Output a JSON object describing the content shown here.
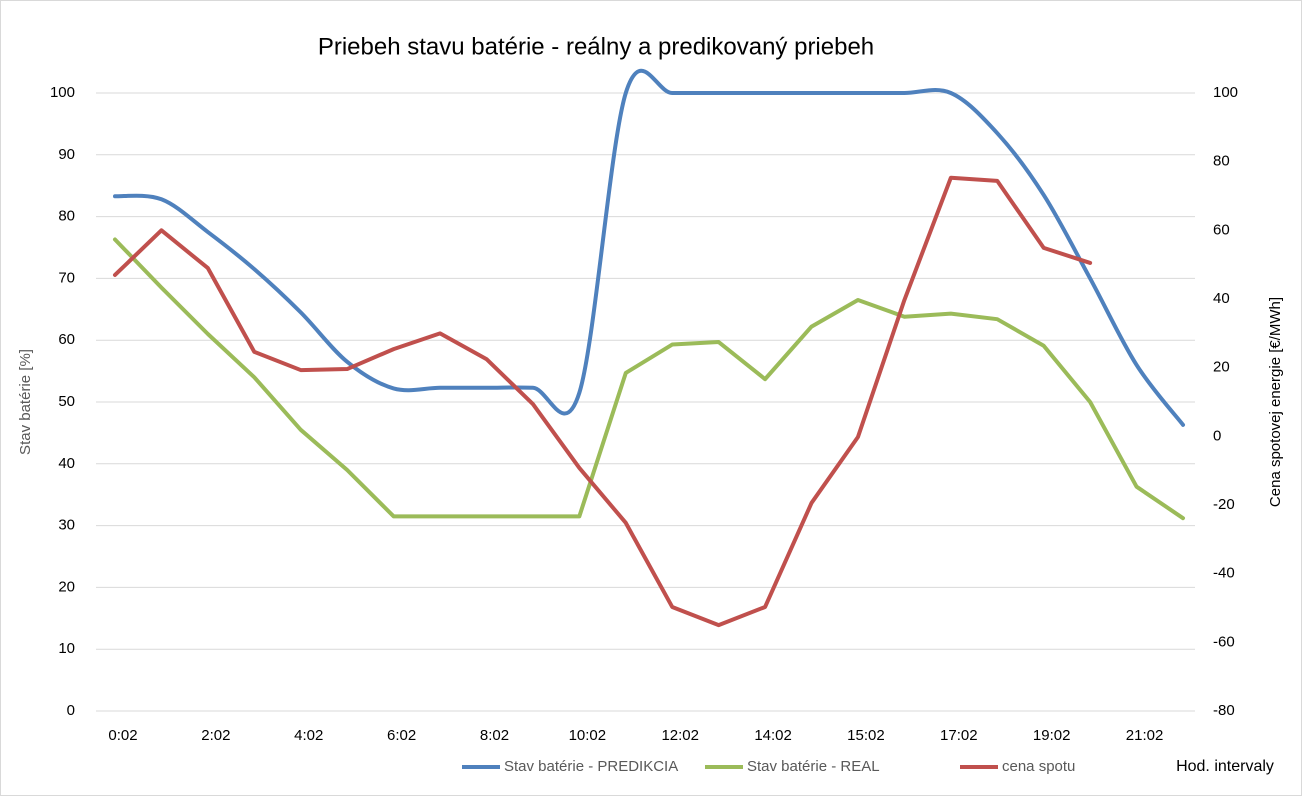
{
  "chart_data": {
    "type": "line",
    "title": "Priebeh stavu batérie - reálny a predikovaný priebeh",
    "y_label": "Stav batérie [%]",
    "y2_label": "Cena spotovej energie [€/MWh]",
    "x_label": "Hod. intervaly",
    "categories": [
      "0:02",
      null,
      "2:02",
      null,
      "4:02",
      null,
      "6:02",
      null,
      "8:02",
      null,
      "10:02",
      null,
      "12:02",
      null,
      "14:02",
      null,
      "15:02",
      null,
      "17:02",
      null,
      "19:02",
      null,
      "21:02",
      null
    ],
    "series": [
      {
        "name": "Stav batérie - PREDIKCIA",
        "color": "#4f81bd",
        "smooth": true,
        "values": [
          83.3,
          82.8,
          77.5,
          71.5,
          64.5,
          56.5,
          52.2,
          52.3,
          52.3,
          52.3,
          51.5,
          100,
          100,
          100,
          100,
          100,
          100,
          100,
          100,
          93.5,
          83.5,
          70,
          56,
          46.3
        ]
      },
      {
        "name": "Stav batérie - REAL",
        "color": "#9bbb59",
        "values": [
          76.3,
          68.5,
          61,
          54,
          45.5,
          39,
          31.5,
          31.5,
          31.5,
          31.5,
          31.5,
          54.7,
          59.3,
          59.7,
          53.7,
          62.2,
          66.5,
          63.8,
          64.3,
          63.4,
          59.1,
          50,
          36.3,
          31.2
        ]
      },
      {
        "name": "cena spotu",
        "color": "#c0504d",
        "axis": "y2",
        "values": [
          47,
          60,
          49,
          24.6,
          19.3,
          19.6,
          25.4,
          30,
          22.5,
          9.4,
          -9.2,
          -25.2,
          -49.7,
          -55,
          -49.7,
          -19.4,
          -0.2,
          39.7,
          75.3,
          74.4,
          54.9,
          50.5,
          null,
          null
        ]
      }
    ],
    "ylim": [
      0,
      100
    ],
    "yticks": [
      0,
      10,
      20,
      30,
      40,
      50,
      60,
      70,
      80,
      90,
      100
    ],
    "y2lim": [
      -80,
      100
    ],
    "y2ticks": [
      -80,
      -60,
      -40,
      -20,
      0,
      20,
      40,
      60,
      80,
      100
    ],
    "grid": true,
    "legend": "bottom"
  }
}
